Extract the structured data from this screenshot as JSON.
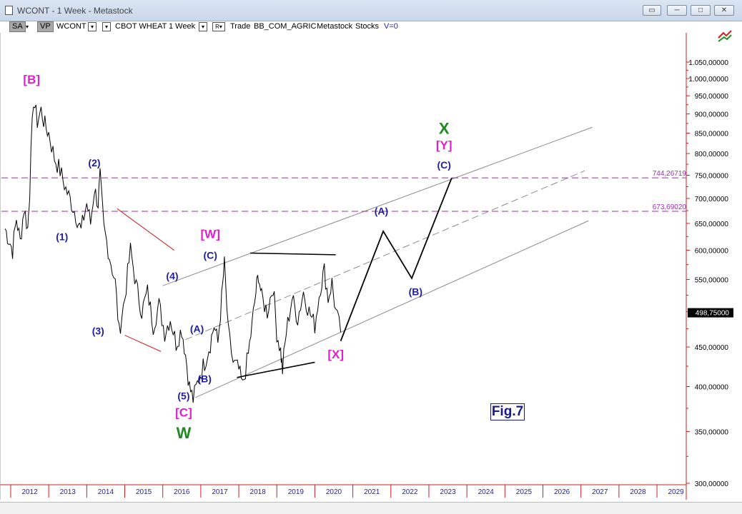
{
  "window": {
    "title": "WCONT - 1 Week - Metastock",
    "buttons": {
      "restore_icon": "restore-icon",
      "minimize": "─",
      "maximize": "□",
      "close": "✕"
    }
  },
  "toolbar": {
    "sa_label": "SA",
    "vp_label": "VP",
    "symbol": "WCONT",
    "security_name": "CBOT WHEAT",
    "period": "1 Week",
    "r_label": "R",
    "trade": "Trade",
    "source": "BB_COM_AGRIC",
    "provider": "Metastock",
    "category": "Stocks",
    "volume": "V=0",
    "chart_type_icon": "candle-chart-icon"
  },
  "chart_data": {
    "type": "line",
    "title": "",
    "price_axis": {
      "scale": "log",
      "ticks": [
        "300,00000",
        "350,00000",
        "400,00000",
        "450,00000",
        "500,00000",
        "550,00000",
        "600,00000",
        "650,00000",
        "700,00000",
        "750,00000",
        "800,00000",
        "850,00000",
        "900,00000",
        "950,00000",
        "1.000,00000",
        "1.050,00000"
      ],
      "current_price": "498,75000",
      "range": [
        300,
        1080
      ]
    },
    "time_axis": {
      "labels": [
        "2012",
        "2013",
        "2014",
        "2015",
        "2016",
        "2017",
        "2018",
        "2019",
        "2020",
        "2021",
        "2022",
        "2023",
        "2024",
        "2025",
        "2026",
        "2027",
        "2028",
        "2029"
      ],
      "range": [
        2011.85,
        2030.3
      ]
    },
    "horizontal_levels": [
      {
        "label": "744,26719",
        "value": 744.27
      },
      {
        "label": "673,69020",
        "value": 673.69
      }
    ],
    "price_series": [
      [
        2011.85,
        640
      ],
      [
        2011.95,
        620
      ],
      [
        2012.05,
        600
      ],
      [
        2012.15,
        660
      ],
      [
        2012.25,
        615
      ],
      [
        2012.35,
        680
      ],
      [
        2012.45,
        640
      ],
      [
        2012.5,
        720
      ],
      [
        2012.6,
        940
      ],
      [
        2012.7,
        880
      ],
      [
        2012.8,
        910
      ],
      [
        2012.9,
        870
      ],
      [
        2013.0,
        850
      ],
      [
        2013.15,
        790
      ],
      [
        2013.3,
        760
      ],
      [
        2013.45,
        720
      ],
      [
        2013.6,
        690
      ],
      [
        2013.75,
        660
      ],
      [
        2013.85,
        635
      ],
      [
        2014.0,
        690
      ],
      [
        2014.1,
        650
      ],
      [
        2014.2,
        720
      ],
      [
        2014.3,
        690
      ],
      [
        2014.35,
        745
      ],
      [
        2014.45,
        640
      ],
      [
        2014.6,
        590
      ],
      [
        2014.75,
        545
      ],
      [
        2014.85,
        470
      ],
      [
        2015.0,
        520
      ],
      [
        2015.15,
        600
      ],
      [
        2015.3,
        540
      ],
      [
        2015.45,
        500
      ],
      [
        2015.6,
        530
      ],
      [
        2015.75,
        480
      ],
      [
        2015.9,
        510
      ],
      [
        2016.05,
        470
      ],
      [
        2016.2,
        490
      ],
      [
        2016.35,
        455
      ],
      [
        2016.5,
        475
      ],
      [
        2016.6,
        440
      ],
      [
        2016.7,
        400
      ],
      [
        2016.8,
        385
      ],
      [
        2016.95,
        410
      ],
      [
        2017.1,
        430
      ],
      [
        2017.25,
        455
      ],
      [
        2017.35,
        480
      ],
      [
        2017.45,
        455
      ],
      [
        2017.55,
        520
      ],
      [
        2017.62,
        575
      ],
      [
        2017.72,
        470
      ],
      [
        2017.85,
        430
      ],
      [
        2018.0,
        420
      ],
      [
        2018.1,
        400
      ],
      [
        2018.25,
        440
      ],
      [
        2018.35,
        480
      ],
      [
        2018.45,
        530
      ],
      [
        2018.52,
        560
      ],
      [
        2018.6,
        520
      ],
      [
        2018.75,
        500
      ],
      [
        2018.9,
        540
      ],
      [
        2019.0,
        470
      ],
      [
        2019.1,
        445
      ],
      [
        2019.15,
        420
      ],
      [
        2019.25,
        470
      ],
      [
        2019.4,
        520
      ],
      [
        2019.55,
        490
      ],
      [
        2019.7,
        530
      ],
      [
        2019.85,
        500
      ],
      [
        2020.0,
        480
      ],
      [
        2020.15,
        540
      ],
      [
        2020.25,
        565
      ],
      [
        2020.35,
        520
      ],
      [
        2020.45,
        545
      ],
      [
        2020.55,
        500
      ],
      [
        2020.68,
        470
      ]
    ],
    "projection_path": [
      [
        2020.68,
        458
      ],
      [
        2021.8,
        635
      ],
      [
        2022.55,
        552
      ],
      [
        2023.6,
        744
      ]
    ],
    "trendlines": [
      {
        "color": "#8c8c8c",
        "dashed": false,
        "from": [
          2016.0,
          540
        ],
        "to": [
          2027.3,
          865
        ]
      },
      {
        "color": "#8c8c8c",
        "dashed": true,
        "from": [
          2016.6,
          460
        ],
        "to": [
          2027.1,
          760
        ]
      },
      {
        "color": "#8c8c8c",
        "dashed": false,
        "from": [
          2016.85,
          387
        ],
        "to": [
          2027.2,
          655
        ]
      },
      {
        "color": "#cc1f1f",
        "dashed": false,
        "from": [
          2014.8,
          679
        ],
        "to": [
          2016.3,
          600
        ]
      },
      {
        "color": "#cc1f1f",
        "dashed": false,
        "from": [
          2015.0,
          466
        ],
        "to": [
          2015.95,
          444
        ]
      },
      {
        "color": "#000000",
        "dashed": false,
        "from": [
          2018.3,
          595
        ],
        "to": [
          2020.55,
          592
        ]
      },
      {
        "color": "#000000",
        "dashed": false,
        "from": [
          2017.95,
          411
        ],
        "to": [
          2020.0,
          430
        ]
      }
    ],
    "wave_labels": [
      {
        "text": "[B]",
        "color": "#e020c8",
        "x": 2012.55,
        "y": 985
      },
      {
        "text": "(2)",
        "color": "#1f1fa0",
        "x": 2014.2,
        "y": 770
      },
      {
        "text": "(1)",
        "color": "#1f1fa0",
        "x": 2013.35,
        "y": 618
      },
      {
        "text": "(3)",
        "color": "#1f1fa0",
        "x": 2014.3,
        "y": 467
      },
      {
        "text": "(4)",
        "color": "#1f1fa0",
        "x": 2016.25,
        "y": 550
      },
      {
        "text": "[W]",
        "color": "#e020c8",
        "x": 2017.25,
        "y": 622
      },
      {
        "text": "(C)",
        "color": "#1f1fa0",
        "x": 2017.25,
        "y": 585
      },
      {
        "text": "(A)",
        "color": "#1f1fa0",
        "x": 2016.9,
        "y": 470
      },
      {
        "text": "(B)",
        "color": "#1f1fa0",
        "x": 2017.1,
        "y": 405
      },
      {
        "text": "(5)",
        "color": "#1f1fa0",
        "x": 2016.55,
        "y": 385
      },
      {
        "text": "[C]",
        "color": "#e020c8",
        "x": 2016.55,
        "y": 366
      },
      {
        "text": "W",
        "color": "#1f8a1f",
        "x": 2016.55,
        "y": 343
      },
      {
        "text": "(A)",
        "color": "#1f1fa0",
        "x": 2021.75,
        "y": 667
      },
      {
        "text": "(B)",
        "color": "#1f1fa0",
        "x": 2022.65,
        "y": 525
      },
      {
        "text": "[X]",
        "color": "#e020c8",
        "x": 2020.55,
        "y": 435
      },
      {
        "text": "(C)",
        "color": "#1f1fa0",
        "x": 2023.4,
        "y": 765
      },
      {
        "text": "[Y]",
        "color": "#e020c8",
        "x": 2023.4,
        "y": 810
      },
      {
        "text": "X",
        "color": "#1f8a1f",
        "x": 2023.4,
        "y": 848
      }
    ],
    "annotation": "Fig.7"
  },
  "colors": {
    "axis_red": "#cc1f1f",
    "level_purple": "#9b2fb0",
    "price_black": "#000000",
    "wave_blue": "#1f1fa0",
    "wave_magenta": "#e020c8",
    "wave_green": "#1f8a1f"
  }
}
